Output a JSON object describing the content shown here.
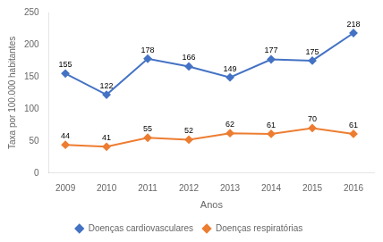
{
  "chart_data": {
    "type": "line",
    "x": [
      2009,
      2010,
      2011,
      2012,
      2013,
      2014,
      2015,
      2016
    ],
    "xlim": [
      2008.6,
      2016.5
    ],
    "xticks": [
      2009,
      2010,
      2011,
      2012,
      2013,
      2014,
      2015,
      2016
    ],
    "xlabel": "Anos",
    "ylabel": "Taxa por 100.000 habitantes",
    "ylim": [
      0,
      250
    ],
    "yticks": [
      0,
      50,
      100,
      150,
      200,
      250
    ],
    "series": [
      {
        "name": "Doenças cardiovasculares",
        "color": "#4472C4",
        "values": [
          155,
          122,
          178,
          166,
          149,
          177,
          175,
          218
        ]
      },
      {
        "name": "Doenças respiratórias",
        "color": "#ED7D31",
        "values": [
          44,
          41,
          55,
          52,
          62,
          61,
          70,
          61
        ]
      }
    ],
    "marker": "diamond",
    "grid": false,
    "legend": "bottom",
    "data_labels": true
  }
}
